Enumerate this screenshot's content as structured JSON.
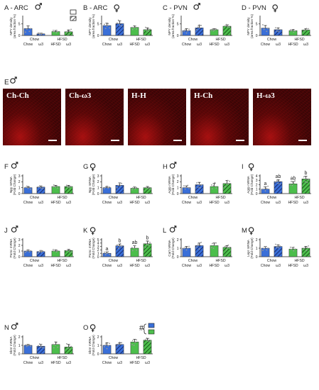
{
  "colors": {
    "blue": "#3a6fd8",
    "green": "#4cbe4c",
    "axis": "#222222",
    "dot": "#9a9a9a"
  },
  "micro_title": "E",
  "micro_sex": "male",
  "micrographs": [
    {
      "label": "Ch-Ch"
    },
    {
      "label": "Ch-ω3"
    },
    {
      "label": "H-H"
    },
    {
      "label": "H-Ch"
    },
    {
      "label": "H-ω3"
    }
  ],
  "legend": {
    "hash": "#"
  },
  "chart_data": [
    {
      "type": "bar",
      "letter": "A - ARC",
      "sex": "male",
      "ylabel": "NPY density",
      "ylabel2": "(area fraction %)",
      "ylim": [
        0,
        8
      ],
      "yticks": [
        0,
        5
      ],
      "groups": [
        "Chow",
        "HFSD"
      ],
      "diets": [
        "Chow",
        "ω3",
        "HFSD",
        "ω3"
      ],
      "values": [
        3.0,
        0.7,
        1.7,
        1.6
      ],
      "errors": [
        1.2,
        0.3,
        0.5,
        0.8
      ],
      "pattern": [
        false,
        true,
        false,
        true
      ],
      "fill": [
        "blue",
        "blue",
        "green",
        "green"
      ],
      "sig": [
        "",
        "",
        "",
        ""
      ],
      "extra": "*"
    },
    {
      "type": "bar",
      "letter": "B - ARC",
      "sex": "female",
      "ylabel": "NPY density",
      "ylabel2": "(area fraction %)",
      "ylim": [
        0,
        8
      ],
      "yticks": [
        0,
        5
      ],
      "groups": [
        "Chow",
        "HFSD"
      ],
      "diets": [
        "Chow",
        "ω3",
        "HFSD",
        "ω3"
      ],
      "values": [
        4.3,
        5.1,
        3.5,
        2.5
      ],
      "errors": [
        1.0,
        1.2,
        0.7,
        0.8
      ],
      "pattern": [
        false,
        true,
        false,
        true
      ],
      "fill": [
        "blue",
        "blue",
        "green",
        "green"
      ],
      "sig": [
        "",
        "",
        "",
        ""
      ],
      "extra": ""
    },
    {
      "type": "bar",
      "letter": "C - PVN",
      "sex": "male",
      "ylabel": "NPY density",
      "ylabel2": "(area fraction %)",
      "ylim": [
        0,
        8
      ],
      "yticks": [
        0,
        5
      ],
      "groups": [
        "Chow",
        "HFSD"
      ],
      "diets": [
        "Chow",
        "ω3",
        "HFSD",
        "ω3"
      ],
      "values": [
        2.1,
        3.3,
        2.5,
        4.0
      ],
      "errors": [
        0.8,
        1.0,
        0.4,
        0.6
      ],
      "pattern": [
        false,
        true,
        false,
        true
      ],
      "fill": [
        "blue",
        "blue",
        "green",
        "green"
      ],
      "sig": [
        "",
        "",
        "",
        ""
      ],
      "extra": ""
    },
    {
      "type": "bar",
      "letter": "D - PVN",
      "sex": "female",
      "ylabel": "NPY density",
      "ylabel2": "(area fraction %)",
      "ylim": [
        0,
        8
      ],
      "yticks": [
        0,
        5
      ],
      "groups": [
        "Chow",
        "HFSD"
      ],
      "diets": [
        "Chow",
        "ω3",
        "HFSD",
        "ω3"
      ],
      "values": [
        3.2,
        2.5,
        2.1,
        2.4
      ],
      "errors": [
        1.1,
        0.8,
        0.5,
        0.5
      ],
      "pattern": [
        false,
        true,
        false,
        true
      ],
      "fill": [
        "blue",
        "blue",
        "green",
        "green"
      ],
      "sig": [
        "",
        "",
        "",
        ""
      ],
      "extra": ""
    },
    {
      "type": "bar",
      "letter": "F",
      "sex": "male",
      "ylabel": "Npy mRNA",
      "ylabel2": "(Fold Change)",
      "ylim": [
        0,
        3
      ],
      "yticks": [
        0,
        1,
        2,
        3
      ],
      "groups": [
        "Chow",
        "HFSD"
      ],
      "diets": [
        "Chow",
        "ω3",
        "HFSD",
        "ω3"
      ],
      "values": [
        1.0,
        1.1,
        1.2,
        1.2
      ],
      "errors": [
        0.2,
        0.2,
        0.2,
        0.2
      ],
      "pattern": [
        false,
        true,
        false,
        true
      ],
      "fill": [
        "blue",
        "blue",
        "green",
        "green"
      ],
      "sig": [
        "",
        "",
        "",
        ""
      ],
      "extra": ""
    },
    {
      "type": "bar",
      "letter": "G",
      "sex": "female",
      "ylabel": "Npy mRNA",
      "ylabel2": "(Fold Change)",
      "ylim": [
        0,
        3
      ],
      "yticks": [
        0,
        1,
        2,
        3
      ],
      "groups": [
        "Chow",
        "HFSD"
      ],
      "diets": [
        "Chow",
        "ω3",
        "HFSD",
        "ω3"
      ],
      "values": [
        1.0,
        1.4,
        0.9,
        1.0
      ],
      "errors": [
        0.2,
        0.4,
        0.2,
        0.2
      ],
      "pattern": [
        false,
        true,
        false,
        true
      ],
      "fill": [
        "blue",
        "blue",
        "green",
        "green"
      ],
      "sig": [
        "",
        "",
        "",
        ""
      ],
      "extra": ""
    },
    {
      "type": "bar",
      "letter": "H",
      "sex": "male",
      "ylabel": "Agrp mRNA",
      "ylabel2": "(Fold Change)",
      "ylim": [
        0,
        3
      ],
      "yticks": [
        0,
        1,
        2,
        3
      ],
      "groups": [
        "Chow",
        "HFSD"
      ],
      "diets": [
        "Chow",
        "ω3",
        "HFSD",
        "ω3"
      ],
      "values": [
        1.0,
        1.5,
        1.2,
        1.7
      ],
      "errors": [
        0.3,
        0.4,
        0.5,
        0.5
      ],
      "pattern": [
        false,
        true,
        false,
        true
      ],
      "fill": [
        "blue",
        "blue",
        "green",
        "green"
      ],
      "sig": [
        "",
        "",
        "",
        ""
      ],
      "extra": ""
    },
    {
      "type": "bar",
      "letter": "I",
      "sex": "female",
      "ylabel": "Agrp mRNA",
      "ylabel2": "(Fold Change)",
      "ylim": [
        0,
        4
      ],
      "yticks": [
        0,
        1,
        2,
        3,
        4
      ],
      "groups": [
        "Chow",
        "HFSD"
      ],
      "diets": [
        "Chow",
        "ω3",
        "HFSD",
        "ω3"
      ],
      "values": [
        1.0,
        2.7,
        2.2,
        3.3
      ],
      "errors": [
        0.5,
        0.4,
        0.5,
        0.6
      ],
      "pattern": [
        false,
        true,
        false,
        true
      ],
      "fill": [
        "blue",
        "blue",
        "green",
        "green"
      ],
      "sig": [
        "a",
        "ab",
        "ab",
        "b"
      ],
      "extra": ""
    },
    {
      "type": "bar",
      "letter": "J",
      "sex": "male",
      "ylabel": "Pomc mRNA",
      "ylabel2": "(Fold Change)",
      "ylim": [
        0,
        3
      ],
      "yticks": [
        0,
        1,
        2,
        3
      ],
      "groups": [
        "Chow",
        "HFSD"
      ],
      "diets": [
        "Chow",
        "ω3",
        "HFSD",
        "ω3"
      ],
      "values": [
        1.0,
        0.9,
        1.0,
        1.1
      ],
      "errors": [
        0.2,
        0.2,
        0.2,
        0.2
      ],
      "pattern": [
        false,
        true,
        false,
        true
      ],
      "fill": [
        "blue",
        "blue",
        "green",
        "green"
      ],
      "sig": [
        "",
        "",
        "",
        ""
      ],
      "extra": ""
    },
    {
      "type": "bar",
      "letter": "K",
      "sex": "female",
      "ylabel": "Pomc mRNA",
      "ylabel2": "(Fold Change)",
      "ylim": [
        0,
        5
      ],
      "yticks": [
        0,
        1,
        2,
        3,
        4,
        5
      ],
      "groups": [
        "Chow",
        "HFSD"
      ],
      "diets": [
        "Chow",
        "ω3",
        "HFSD",
        "ω3"
      ],
      "values": [
        1.0,
        3.2,
        2.5,
        3.8
      ],
      "errors": [
        0.4,
        0.5,
        0.7,
        0.8
      ],
      "pattern": [
        false,
        true,
        false,
        true
      ],
      "fill": [
        "blue",
        "blue",
        "green",
        "green"
      ],
      "sig": [
        "a",
        "b",
        "ab",
        "b"
      ],
      "extra": ""
    },
    {
      "type": "bar",
      "letter": "L",
      "sex": "male",
      "ylabel": "Cart mRNA",
      "ylabel2": "(Fold Change)",
      "ylim": [
        0,
        2
      ],
      "yticks": [
        0,
        1,
        2
      ],
      "groups": [
        "Chow",
        "HFSD"
      ],
      "diets": [
        "Chow",
        "ω3",
        "HFSD",
        "ω3"
      ],
      "values": [
        1.0,
        1.3,
        1.3,
        1.1
      ],
      "errors": [
        0.2,
        0.3,
        0.3,
        0.2
      ],
      "pattern": [
        false,
        true,
        false,
        true
      ],
      "fill": [
        "blue",
        "blue",
        "green",
        "green"
      ],
      "sig": [
        "",
        "",
        "",
        ""
      ],
      "extra": ""
    },
    {
      "type": "bar",
      "letter": "M",
      "sex": "female",
      "ylabel": "Lepr mRNA",
      "ylabel2": "(Fold Change)",
      "ylim": [
        0,
        2
      ],
      "yticks": [
        0,
        1,
        2
      ],
      "groups": [
        "Chow",
        "HFSD"
      ],
      "diets": [
        "Chow",
        "ω3",
        "HFSD",
        "ω3"
      ],
      "values": [
        1.0,
        1.2,
        0.9,
        1.0
      ],
      "errors": [
        0.2,
        0.2,
        0.2,
        0.2
      ],
      "pattern": [
        false,
        true,
        false,
        true
      ],
      "fill": [
        "blue",
        "blue",
        "green",
        "green"
      ],
      "sig": [
        "",
        "",
        "",
        ""
      ],
      "extra": ""
    },
    {
      "type": "bar",
      "letter": "N",
      "sex": "male",
      "ylabel": "Gknr mRNA",
      "ylabel2": "(Fold Change)",
      "ylim": [
        0,
        2
      ],
      "yticks": [
        0,
        1,
        2
      ],
      "groups": [
        "Chow",
        "HFSD"
      ],
      "diets": [
        "Chow",
        "ω3",
        "HFSD",
        "ω3"
      ],
      "values": [
        1.0,
        0.9,
        1.1,
        0.8
      ],
      "errors": [
        0.1,
        0.2,
        0.3,
        0.3
      ],
      "pattern": [
        false,
        true,
        false,
        true
      ],
      "fill": [
        "blue",
        "blue",
        "green",
        "green"
      ],
      "sig": [
        "",
        "",
        "",
        ""
      ],
      "extra": ""
    },
    {
      "type": "bar",
      "letter": "O",
      "sex": "female",
      "ylabel": "Gknr mRNA",
      "ylabel2": "(Fold Change)",
      "ylim": [
        0,
        2
      ],
      "yticks": [
        0,
        1,
        2
      ],
      "groups": [
        "Chow",
        "HFSD"
      ],
      "diets": [
        "Chow",
        "ω3",
        "HFSD",
        "ω3"
      ],
      "values": [
        1.0,
        1.1,
        1.4,
        1.6
      ],
      "errors": [
        0.3,
        0.2,
        0.3,
        0.2
      ],
      "pattern": [
        false,
        true,
        false,
        true
      ],
      "fill": [
        "blue",
        "blue",
        "green",
        "green"
      ],
      "sig": [
        "",
        "",
        "",
        ""
      ],
      "extra": ""
    }
  ]
}
